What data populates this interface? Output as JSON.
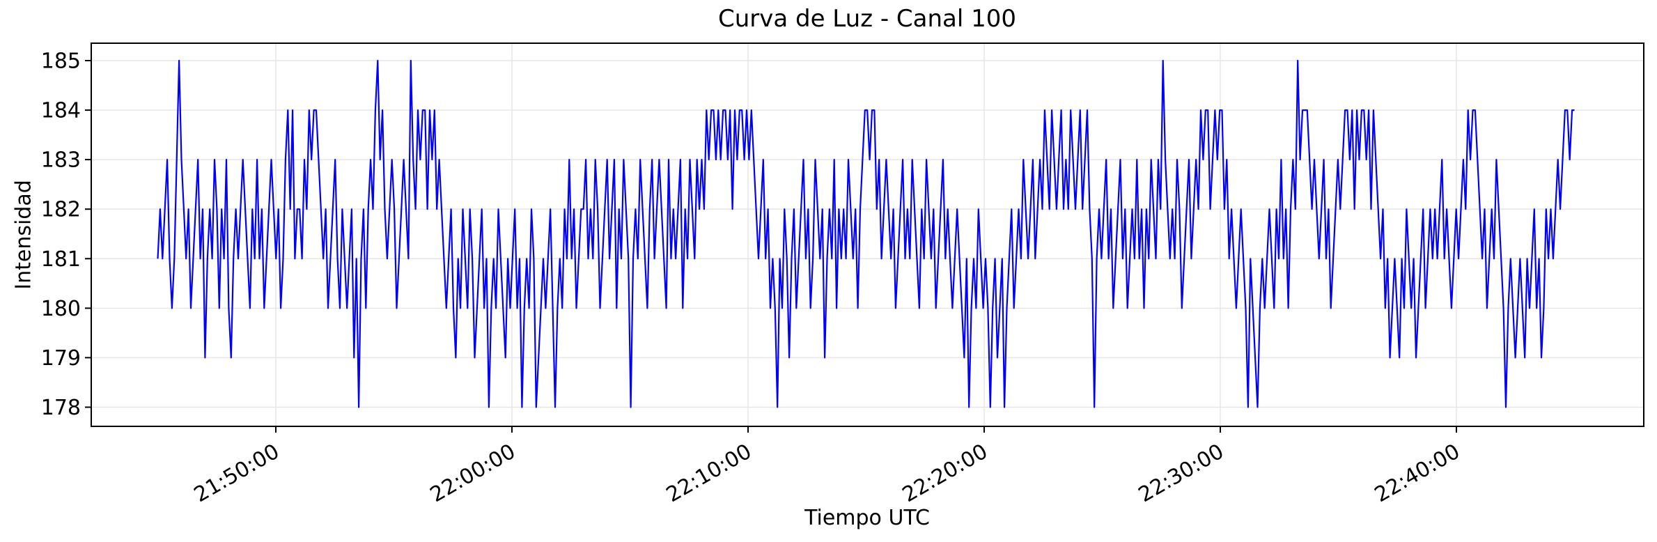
{
  "chart_data": {
    "type": "line",
    "title": "Curva de Luz - Canal 100",
    "xlabel": "Tiempo UTC",
    "ylabel": "Intensidad",
    "line_color": "#0000ff",
    "grid_color": "#e6e6e6",
    "frame_color": "#000000",
    "grid": true,
    "legend": "none",
    "x_start": "21:45:00",
    "x_end": "22:45:00",
    "sample_interval_seconds": 6,
    "x_tick_labels": [
      "21:50:00",
      "22:00:00",
      "22:10:00",
      "22:20:00",
      "22:30:00",
      "22:40:00"
    ],
    "y_ticks": [
      178,
      179,
      180,
      181,
      182,
      183,
      184,
      185
    ],
    "ylim": [
      177.6,
      185.4
    ],
    "values": [
      181,
      182,
      181,
      182,
      183,
      181,
      180,
      181,
      183,
      185,
      183,
      182,
      181,
      182,
      180,
      181,
      182,
      183,
      181,
      182,
      179,
      181,
      182,
      181,
      183,
      182,
      180,
      182,
      181,
      183,
      180,
      179,
      181,
      182,
      181,
      182,
      183,
      182,
      181,
      180,
      182,
      181,
      183,
      181,
      182,
      180,
      181,
      182,
      183,
      182,
      181,
      182,
      180,
      181,
      183,
      184,
      182,
      184,
      181,
      182,
      182,
      181,
      183,
      182,
      184,
      183,
      184,
      184,
      183,
      182,
      181,
      182,
      180,
      181,
      182,
      183,
      181,
      180,
      182,
      181,
      180,
      181,
      182,
      179,
      181,
      178,
      181,
      182,
      180,
      182,
      183,
      182,
      184,
      185,
      183,
      184,
      182,
      181,
      182,
      183,
      182,
      180,
      181,
      182,
      183,
      182,
      181,
      185,
      183,
      182,
      184,
      183,
      184,
      184,
      182,
      184,
      183,
      184,
      182,
      183,
      182,
      181,
      180,
      181,
      182,
      180,
      179,
      181,
      180,
      182,
      181,
      180,
      182,
      181,
      179,
      180,
      181,
      182,
      180,
      181,
      178,
      180,
      181,
      180,
      182,
      181,
      180,
      179,
      181,
      180,
      181,
      182,
      180,
      181,
      178,
      180,
      181,
      180,
      182,
      181,
      178,
      179,
      180,
      181,
      180,
      181,
      182,
      180,
      178,
      180,
      181,
      180,
      182,
      181,
      183,
      181,
      182,
      180,
      181,
      182,
      182,
      183,
      181,
      182,
      181,
      183,
      182,
      180,
      181,
      182,
      183,
      181,
      182,
      183,
      180,
      182,
      181,
      183,
      182,
      181,
      178,
      181,
      182,
      181,
      183,
      182,
      181,
      180,
      182,
      183,
      181,
      182,
      183,
      182,
      181,
      180,
      183,
      181,
      182,
      181,
      182,
      183,
      180,
      182,
      181,
      183,
      182,
      181,
      183,
      182,
      183,
      182,
      184,
      183,
      184,
      184,
      183,
      184,
      183,
      184,
      184,
      183,
      184,
      182,
      184,
      183,
      184,
      184,
      183,
      184,
      183,
      184,
      183,
      182,
      181,
      182,
      183,
      181,
      182,
      180,
      181,
      180,
      178,
      181,
      180,
      182,
      181,
      179,
      181,
      182,
      180,
      181,
      182,
      183,
      181,
      182,
      180,
      181,
      183,
      182,
      181,
      182,
      179,
      181,
      182,
      181,
      183,
      180,
      182,
      181,
      182,
      181,
      183,
      182,
      181,
      182,
      180,
      182,
      183,
      184,
      184,
      183,
      184,
      184,
      182,
      183,
      181,
      182,
      183,
      182,
      181,
      182,
      180,
      181,
      182,
      183,
      181,
      182,
      181,
      183,
      182,
      181,
      180,
      182,
      181,
      183,
      182,
      181,
      182,
      180,
      181,
      182,
      183,
      181,
      182,
      181,
      180,
      181,
      182,
      181,
      180,
      179,
      181,
      178,
      180,
      181,
      180,
      182,
      181,
      180,
      181,
      180,
      178,
      180,
      181,
      179,
      180,
      181,
      178,
      180,
      181,
      182,
      180,
      181,
      182,
      181,
      183,
      182,
      181,
      182,
      183,
      181,
      182,
      183,
      182,
      184,
      183,
      182,
      184,
      183,
      182,
      183,
      184,
      182,
      183,
      182,
      184,
      183,
      182,
      183,
      184,
      182,
      183,
      184,
      182,
      181,
      178,
      181,
      182,
      181,
      182,
      183,
      181,
      182,
      180,
      181,
      182,
      183,
      181,
      182,
      180,
      181,
      182,
      181,
      183,
      181,
      182,
      180,
      182,
      181,
      183,
      182,
      181,
      183,
      182,
      185,
      183,
      182,
      181,
      182,
      181,
      183,
      182,
      180,
      181,
      182,
      183,
      181,
      182,
      183,
      182,
      184,
      183,
      184,
      184,
      182,
      183,
      184,
      183,
      184,
      184,
      182,
      183,
      181,
      182,
      181,
      180,
      181,
      182,
      181,
      180,
      178,
      181,
      180,
      179,
      178,
      180,
      181,
      180,
      181,
      182,
      181,
      180,
      182,
      181,
      183,
      181,
      182,
      180,
      182,
      183,
      182,
      185,
      183,
      184,
      184,
      184,
      183,
      182,
      183,
      182,
      181,
      182,
      183,
      181,
      182,
      180,
      181,
      182,
      183,
      182,
      183,
      184,
      184,
      183,
      184,
      182,
      184,
      183,
      184,
      184,
      183,
      184,
      182,
      184,
      183,
      182,
      181,
      182,
      180,
      181,
      179,
      180,
      181,
      180,
      179,
      181,
      180,
      182,
      181,
      180,
      181,
      179,
      180,
      181,
      182,
      180,
      181,
      182,
      181,
      182,
      181,
      182,
      183,
      181,
      182,
      181,
      180,
      181,
      182,
      181,
      182,
      183,
      182,
      184,
      183,
      184,
      184,
      183,
      182,
      181,
      182,
      180,
      181,
      182,
      181,
      183,
      182,
      181,
      180,
      178,
      180,
      181,
      180,
      179,
      180,
      181,
      180,
      179,
      181,
      180,
      181,
      182,
      180,
      181,
      179,
      180,
      182,
      181,
      182,
      181,
      182,
      183,
      182,
      183,
      184,
      184,
      183,
      184,
      184
    ]
  }
}
